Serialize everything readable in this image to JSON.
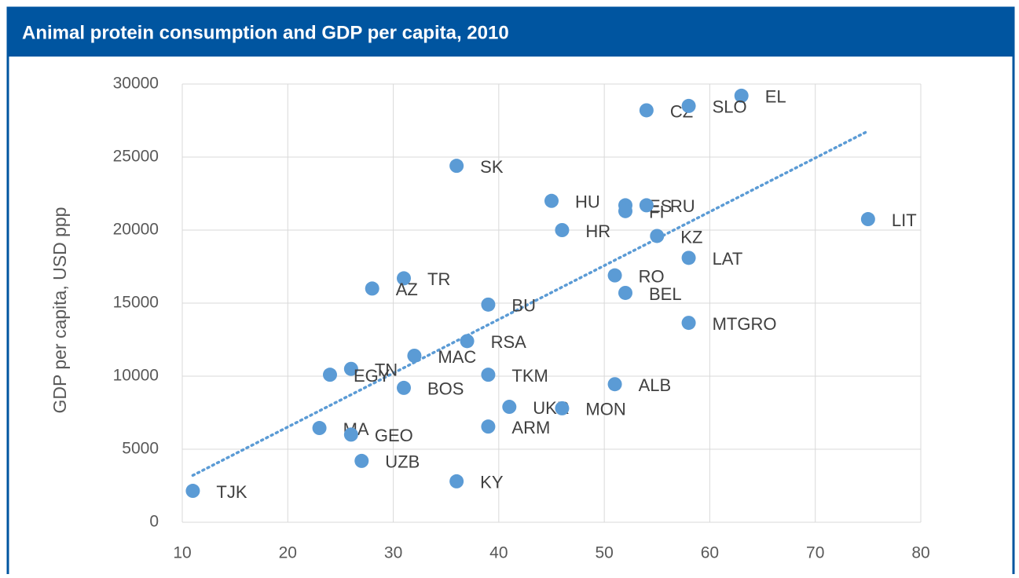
{
  "chart_data": {
    "type": "scatter",
    "title": "Animal protein consumption and GDP per capita,  2010",
    "y_label": "GDP per capita, USD ppp",
    "color": "#5b9bd5",
    "trendline": "linear",
    "grid": true,
    "labels": [
      "TJK",
      "EL",
      "CZ",
      "SLO",
      "SK",
      "HU",
      "ES",
      "FI",
      "RU",
      "LIT",
      "HR",
      "KZ",
      "LAT",
      "RO",
      "TR",
      "AZ",
      "BEL",
      "BU",
      "MTGRO",
      "RSA",
      "MAC",
      "TN",
      "EGY",
      "TKM",
      "BOS",
      "ALB",
      "UKR",
      "MON",
      "MA",
      "ARM",
      "GEO",
      "UZB",
      "KY"
    ],
    "x": [
      11,
      63,
      54,
      58,
      36,
      45,
      52,
      52,
      54,
      75,
      46,
      55,
      58,
      51,
      31,
      28,
      52,
      39,
      58,
      37,
      32,
      26,
      24,
      39,
      31,
      51,
      41,
      46,
      23,
      39,
      26,
      27,
      36
    ],
    "y": [
      2150,
      29200,
      28200,
      28500,
      24400,
      22000,
      21700,
      21300,
      21700,
      20750,
      20000,
      19600,
      18100,
      16900,
      16700,
      16000,
      15700,
      14900,
      13650,
      12400,
      11400,
      10500,
      10100,
      10100,
      9200,
      9450,
      7900,
      7800,
      6450,
      6550,
      6000,
      4200,
      2800
    ],
    "xlim": [
      10,
      80
    ],
    "xticks": [
      10,
      20,
      30,
      40,
      50,
      60,
      70,
      80
    ],
    "ylim": [
      0,
      30000
    ],
    "yticks": [
      0,
      5000,
      10000,
      15000,
      20000,
      25000,
      30000
    ]
  }
}
